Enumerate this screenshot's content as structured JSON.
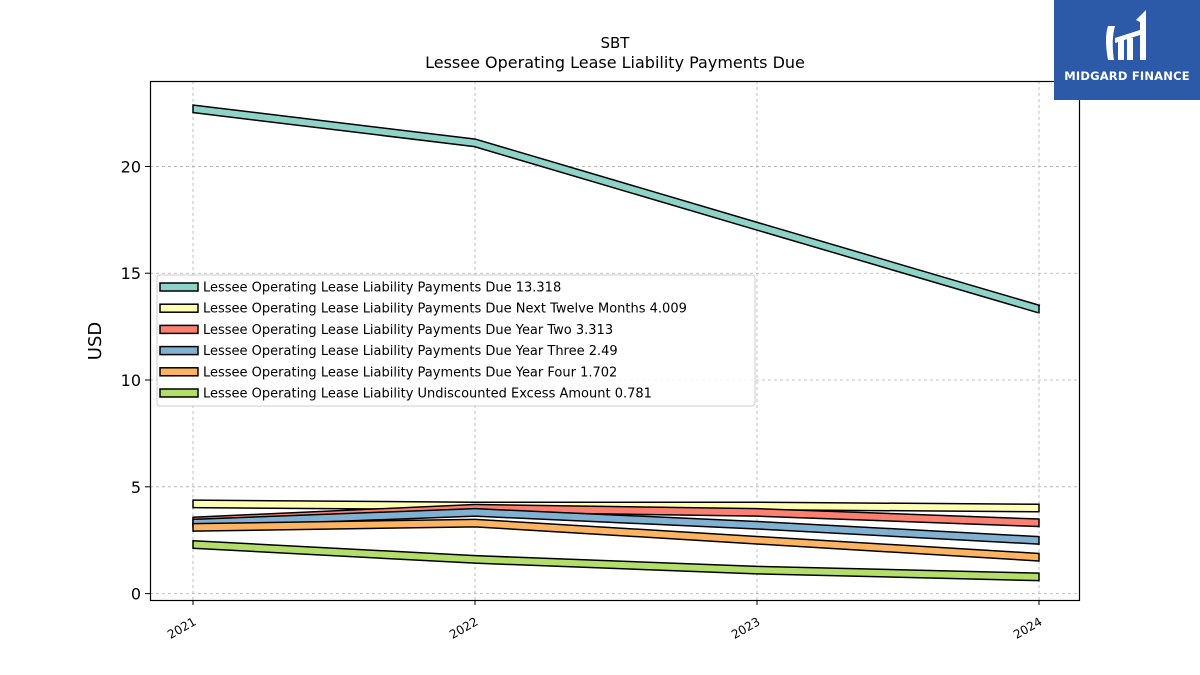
{
  "logo": {
    "text": "MIDGARD FINANCE"
  },
  "chart_data": {
    "type": "line",
    "title": "SBT",
    "subtitle": "Lessee Operating Lease Liability Payments Due",
    "xlabel": "",
    "ylabel": "USD",
    "categories": [
      "2021",
      "2022",
      "2023",
      "2024"
    ],
    "ylim": [
      -0.3,
      24
    ],
    "yticks": [
      0,
      5,
      10,
      15,
      20
    ],
    "grid": true,
    "legend_position": "center-left",
    "series": [
      {
        "name": "Lessee Operating Lease Liability Payments Due",
        "legend_label": "Lessee Operating Lease Liability Payments Due  13.318",
        "color": "#8dd3c7",
        "values": [
          22.7,
          21.1,
          17.2,
          13.318
        ]
      },
      {
        "name": "Lessee Operating Lease Liability Payments Due Next Twelve Months",
        "legend_label": "Lessee Operating Lease Liability Payments Due Next Twelve Months  4.009",
        "color": "#ffffb3",
        "values": [
          4.2,
          4.1,
          4.1,
          4.009
        ]
      },
      {
        "name": "Lessee Operating Lease Liability Payments Due Year Two",
        "legend_label": "Lessee Operating Lease Liability Payments Due Year Two  3.313",
        "color": "#fb8072",
        "values": [
          3.4,
          4.0,
          3.8,
          3.313
        ]
      },
      {
        "name": "Lessee Operating Lease Liability Payments Due Year Three",
        "legend_label": "Lessee Operating Lease Liability Payments Due Year Three  2.49",
        "color": "#80b1d3",
        "values": [
          3.3,
          3.8,
          3.2,
          2.49
        ]
      },
      {
        "name": "Lessee Operating Lease Liability Payments Due Year Four",
        "legend_label": "Lessee Operating Lease Liability Payments Due Year Four  1.702",
        "color": "#fdb462",
        "values": [
          3.1,
          3.3,
          2.5,
          1.702
        ]
      },
      {
        "name": "Lessee Operating Lease Liability Undiscounted Excess Amount",
        "legend_label": "Lessee Operating Lease Liability Undiscounted Excess Amount  0.781",
        "color": "#b3de69",
        "values": [
          2.3,
          1.6,
          1.1,
          0.781
        ]
      }
    ]
  }
}
